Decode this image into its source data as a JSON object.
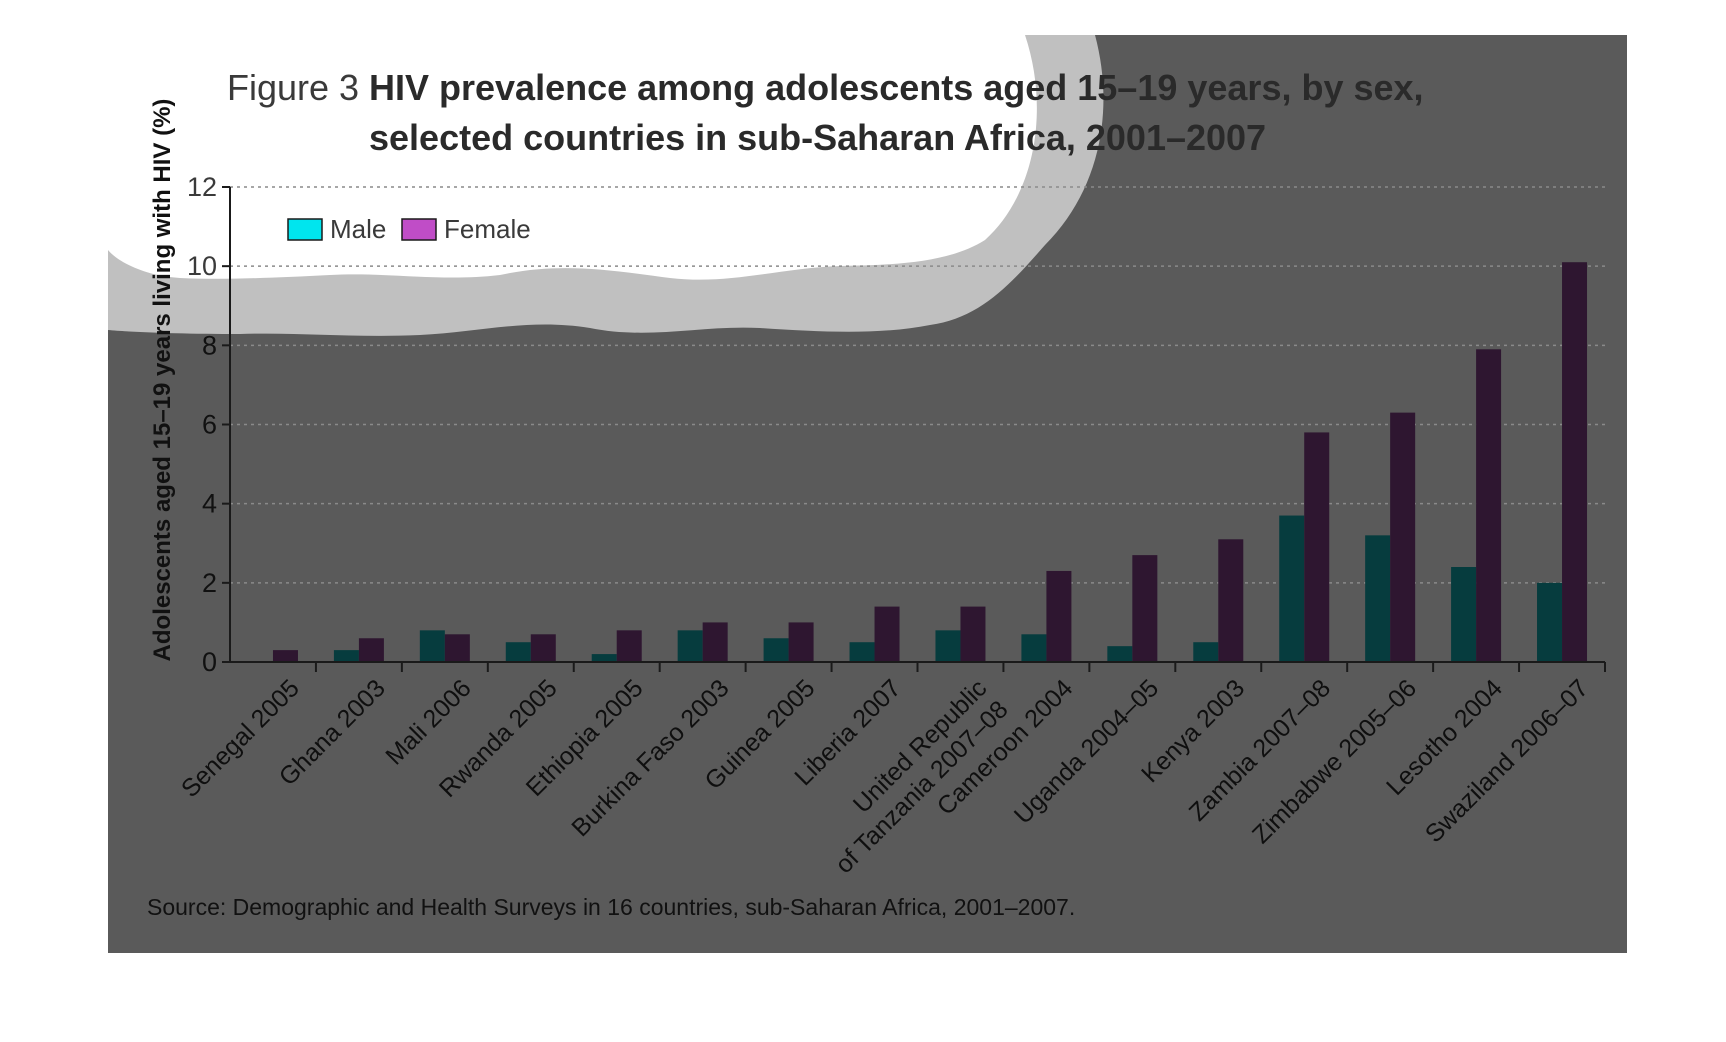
{
  "figure": {
    "label": "Figure 3",
    "title_line1": "HIV prevalence among adolescents aged 15–19 years, by sex,",
    "title_line2": "selected countries in sub-Saharan Africa, 2001–2007",
    "source": "Source: Demographic and Health Surveys in 16 countries, sub-Saharan Africa, 2001–2007."
  },
  "colors": {
    "panel": "#5a5a5a",
    "cloud": "#ffffff",
    "cloud_shadow": "#c0c0c0",
    "male": "#00e5ee",
    "female": "#c04dc7",
    "male_bar": "#063c3e",
    "female_bar": "#2e1630",
    "axis": "#1a1a1a",
    "grid": "#8a8a8a"
  },
  "chart_data": {
    "type": "bar",
    "ylabel": "Adolescents aged 15–19 years living with HIV (%)",
    "xlabel": "",
    "ylim": [
      0,
      12
    ],
    "yticks": [
      0,
      2,
      4,
      6,
      8,
      10,
      12
    ],
    "grid": true,
    "legend_position": "top-left",
    "categories": [
      [
        "Senegal 2005"
      ],
      [
        "Ghana 2003"
      ],
      [
        "Mali 2006"
      ],
      [
        "Rwanda 2005"
      ],
      [
        "Ethiopia 2005"
      ],
      [
        "Burkina Faso 2003"
      ],
      [
        "Guinea 2005"
      ],
      [
        "Liberia 2007"
      ],
      [
        "United Republic",
        "of Tanzania 2007–08"
      ],
      [
        "Cameroon 2004"
      ],
      [
        "Uganda 2004–05"
      ],
      [
        "Kenya 2003"
      ],
      [
        "Zambia 2007–08"
      ],
      [
        "Zimbabwe 2005–06"
      ],
      [
        "Lesotho 2004"
      ],
      [
        "Swaziland 2006–07"
      ]
    ],
    "series": [
      {
        "name": "Male",
        "values": [
          0.0,
          0.3,
          0.8,
          0.5,
          0.2,
          0.8,
          0.6,
          0.5,
          0.8,
          0.7,
          0.4,
          0.5,
          3.7,
          3.2,
          2.4,
          2.0
        ]
      },
      {
        "name": "Female",
        "values": [
          0.3,
          0.6,
          0.7,
          0.7,
          0.8,
          1.0,
          1.0,
          1.4,
          1.4,
          2.3,
          2.7,
          3.1,
          5.8,
          6.3,
          7.9,
          10.1
        ]
      }
    ]
  }
}
